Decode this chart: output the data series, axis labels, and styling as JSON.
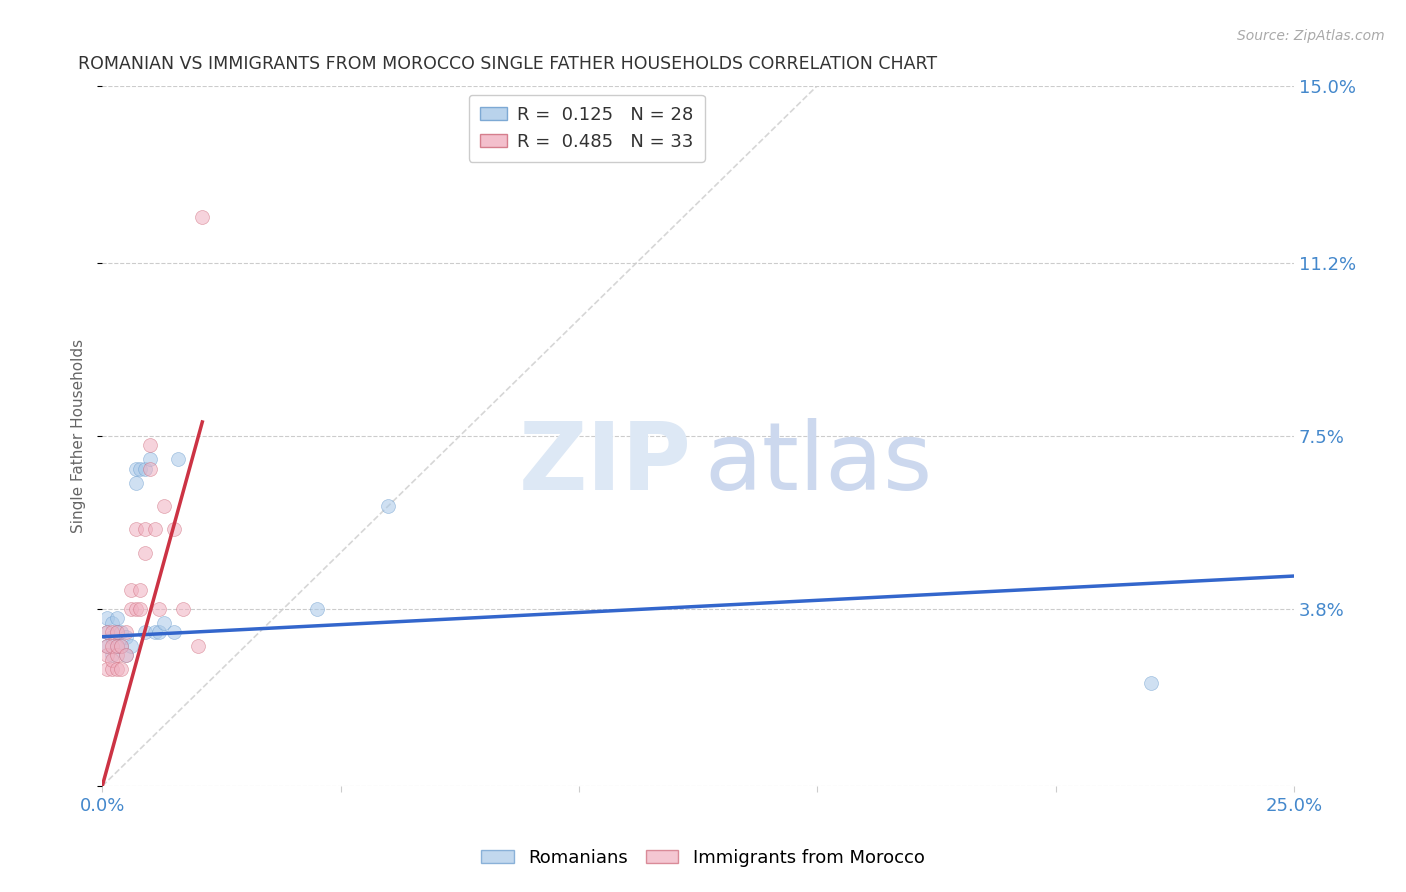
{
  "title": "ROMANIAN VS IMMIGRANTS FROM MOROCCO SINGLE FATHER HOUSEHOLDS CORRELATION CHART",
  "source": "Source: ZipAtlas.com",
  "ylabel": "Single Father Households",
  "xlim": [
    0,
    0.25
  ],
  "ylim": [
    0,
    0.15
  ],
  "grid_color": "#cccccc",
  "background_color": "#ffffff",
  "title_color": "#333333",
  "source_color": "#aaaaaa",
  "romanians_color": "#a8c8e8",
  "romanians_edge_color": "#6699cc",
  "morocco_color": "#f0b0c0",
  "morocco_edge_color": "#cc6677",
  "R_romanians": 0.125,
  "N_romanians": 28,
  "R_morocco": 0.485,
  "N_morocco": 33,
  "trendline_romanians_color": "#3366cc",
  "trendline_morocco_color": "#cc3344",
  "diagonal_color": "#cccccc",
  "romanians_x": [
    0.001,
    0.001,
    0.001,
    0.002,
    0.002,
    0.002,
    0.003,
    0.003,
    0.003,
    0.004,
    0.004,
    0.005,
    0.005,
    0.006,
    0.007,
    0.007,
    0.008,
    0.009,
    0.009,
    0.01,
    0.011,
    0.012,
    0.013,
    0.015,
    0.016,
    0.045,
    0.06,
    0.22
  ],
  "romanians_y": [
    0.03,
    0.033,
    0.036,
    0.028,
    0.032,
    0.035,
    0.03,
    0.033,
    0.036,
    0.03,
    0.033,
    0.028,
    0.032,
    0.03,
    0.065,
    0.068,
    0.068,
    0.033,
    0.068,
    0.07,
    0.033,
    0.033,
    0.035,
    0.033,
    0.07,
    0.038,
    0.06,
    0.022
  ],
  "morocco_x": [
    0.001,
    0.001,
    0.001,
    0.001,
    0.002,
    0.002,
    0.002,
    0.002,
    0.003,
    0.003,
    0.003,
    0.003,
    0.004,
    0.004,
    0.005,
    0.005,
    0.006,
    0.006,
    0.007,
    0.007,
    0.008,
    0.008,
    0.009,
    0.009,
    0.01,
    0.01,
    0.011,
    0.012,
    0.013,
    0.015,
    0.017,
    0.02,
    0.021
  ],
  "morocco_y": [
    0.025,
    0.028,
    0.03,
    0.033,
    0.025,
    0.027,
    0.03,
    0.033,
    0.025,
    0.028,
    0.03,
    0.033,
    0.025,
    0.03,
    0.028,
    0.033,
    0.038,
    0.042,
    0.038,
    0.055,
    0.038,
    0.042,
    0.05,
    0.055,
    0.068,
    0.073,
    0.055,
    0.038,
    0.06,
    0.055,
    0.038,
    0.03,
    0.122
  ],
  "legend_labels": [
    "Romanians",
    "Immigrants from Morocco"
  ],
  "marker_size": 100,
  "alpha": 0.55,
  "trendline_rom_x0": 0.0,
  "trendline_rom_y0": 0.032,
  "trendline_rom_x1": 0.25,
  "trendline_rom_y1": 0.045,
  "trendline_mor_x0": 0.0,
  "trendline_mor_y0": 0.0,
  "trendline_mor_x1": 0.021,
  "trendline_mor_y1": 0.078
}
